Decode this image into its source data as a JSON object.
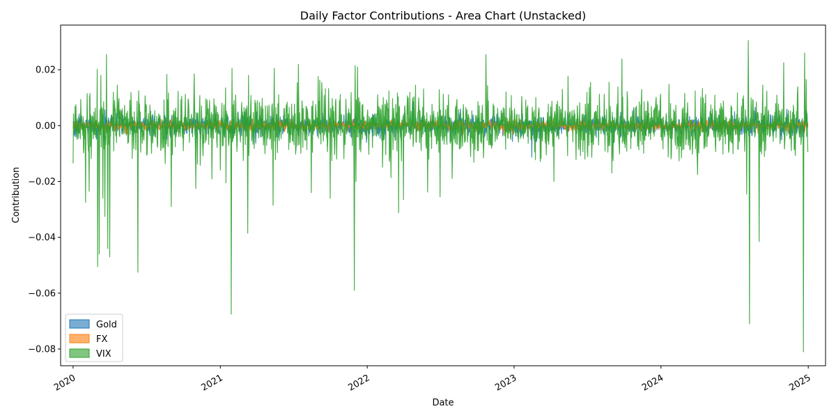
{
  "chart_data": {
    "type": "area",
    "title": "Daily Factor Contributions - Area Chart (Unstacked)",
    "xlabel": "Date",
    "ylabel": "Contribution",
    "x_range": [
      "2019-12-01",
      "2025-02-13"
    ],
    "ylim": [
      -0.086,
      0.036
    ],
    "x_ticks": [
      {
        "date": "2020-01-01",
        "label": "2020"
      },
      {
        "date": "2021-01-01",
        "label": "2021"
      },
      {
        "date": "2022-01-01",
        "label": "2022"
      },
      {
        "date": "2023-01-01",
        "label": "2023"
      },
      {
        "date": "2024-01-01",
        "label": "2024"
      },
      {
        "date": "2025-01-01",
        "label": "2025"
      }
    ],
    "y_ticks": [
      {
        "value": 0.02,
        "label": "0.02"
      },
      {
        "value": 0.0,
        "label": "0.00"
      },
      {
        "value": -0.02,
        "label": "−0.02"
      },
      {
        "value": -0.04,
        "label": "−0.04"
      },
      {
        "value": -0.06,
        "label": "−0.06"
      },
      {
        "value": -0.08,
        "label": "−0.08"
      }
    ],
    "grid": false,
    "legend_position": "lower-left",
    "frequency": "daily",
    "x_start": "2020-01-01",
    "x_end": "2024-12-31",
    "series": [
      {
        "name": "Gold",
        "color": "#1f77b4",
        "alpha": 0.6,
        "typical_range": [
          -0.004,
          0.004
        ],
        "sample_points": [
          [
            "2020-01-01",
            0.0015
          ],
          [
            "2020-02-15",
            -0.002
          ],
          [
            "2020-03-15",
            0.004
          ],
          [
            "2020-05-01",
            -0.003
          ],
          [
            "2020-12-01",
            -0.003
          ],
          [
            "2021-06-01",
            0.002
          ],
          [
            "2022-01-01",
            -0.002
          ],
          [
            "2022-09-01",
            0.002
          ],
          [
            "2023-03-15",
            0.003
          ],
          [
            "2023-09-01",
            -0.002
          ],
          [
            "2024-05-01",
            0.002
          ],
          [
            "2024-11-01",
            -0.003
          ],
          [
            "2024-12-31",
            0.001
          ]
        ]
      },
      {
        "name": "FX",
        "color": "#ff7f0e",
        "alpha": 0.6,
        "typical_range": [
          -0.002,
          0.002
        ],
        "sample_points": [
          [
            "2020-01-01",
            -0.001
          ],
          [
            "2020-03-01",
            0.002
          ],
          [
            "2020-03-20",
            -0.003
          ],
          [
            "2021-01-01",
            0.001
          ],
          [
            "2022-01-01",
            0.001
          ],
          [
            "2022-10-01",
            -0.002
          ],
          [
            "2022-11-01",
            0.002
          ],
          [
            "2023-10-01",
            0.0015
          ],
          [
            "2024-11-01",
            0.001
          ],
          [
            "2024-12-31",
            -0.0005
          ]
        ]
      },
      {
        "name": "VIX",
        "color": "#2ca02c",
        "alpha": 0.6,
        "typical_range": [
          -0.012,
          0.012
        ],
        "peaks": [
          [
            "2020-01-01",
            -0.0135
          ],
          [
            "2020-01-08",
            0.0075
          ],
          [
            "2020-02-01",
            -0.0275
          ],
          [
            "2020-02-05",
            0.0115
          ],
          [
            "2020-02-10",
            -0.0235
          ],
          [
            "2020-02-12",
            0.0115
          ],
          [
            "2020-03-02",
            -0.0505
          ],
          [
            "2020-03-06",
            -0.046
          ],
          [
            "2020-03-10",
            0.018
          ],
          [
            "2020-03-15",
            -0.026
          ],
          [
            "2020-03-20",
            -0.0325
          ],
          [
            "2020-03-24",
            0.0255
          ],
          [
            "2020-03-27",
            -0.044
          ],
          [
            "2020-04-01",
            -0.047
          ],
          [
            "2020-04-20",
            0.0145
          ],
          [
            "2020-06-10",
            -0.0525
          ],
          [
            "2020-06-12",
            0.0125
          ],
          [
            "2020-09-01",
            -0.029
          ],
          [
            "2020-10-28",
            0.0185
          ],
          [
            "2020-11-01",
            -0.0225
          ],
          [
            "2021-01-15",
            -0.0205
          ],
          [
            "2021-01-28",
            -0.0675
          ],
          [
            "2021-01-30",
            0.0205
          ],
          [
            "2021-03-10",
            -0.0385
          ],
          [
            "2021-03-12",
            0.018
          ],
          [
            "2021-05-12",
            -0.0285
          ],
          [
            "2021-05-15",
            0.0205
          ],
          [
            "2021-08-15",
            -0.024
          ],
          [
            "2021-09-10",
            0.0155
          ],
          [
            "2021-10-01",
            -0.026
          ],
          [
            "2021-11-30",
            -0.059
          ],
          [
            "2021-12-02",
            0.0215
          ],
          [
            "2021-12-04",
            -0.02
          ],
          [
            "2021-12-08",
            0.021
          ],
          [
            "2022-04-01",
            -0.0265
          ],
          [
            "2022-05-01",
            0.0145
          ],
          [
            "2022-07-01",
            -0.0255
          ],
          [
            "2023-04-10",
            -0.02
          ],
          [
            "2023-05-01",
            0.013
          ],
          [
            "2023-07-10",
            0.0155
          ],
          [
            "2023-09-01",
            -0.017
          ],
          [
            "2024-04-01",
            -0.0175
          ],
          [
            "2024-08-01",
            -0.0245
          ],
          [
            "2024-08-05",
            0.0305
          ],
          [
            "2024-08-08",
            -0.071
          ],
          [
            "2024-09-01",
            -0.0415
          ],
          [
            "2024-09-10",
            0.0145
          ],
          [
            "2024-11-01",
            0.0225
          ],
          [
            "2024-12-20",
            -0.081
          ],
          [
            "2024-12-23",
            0.026
          ],
          [
            "2024-12-27",
            0.0165
          ],
          [
            "2024-12-31",
            -0.0095
          ]
        ]
      }
    ]
  }
}
